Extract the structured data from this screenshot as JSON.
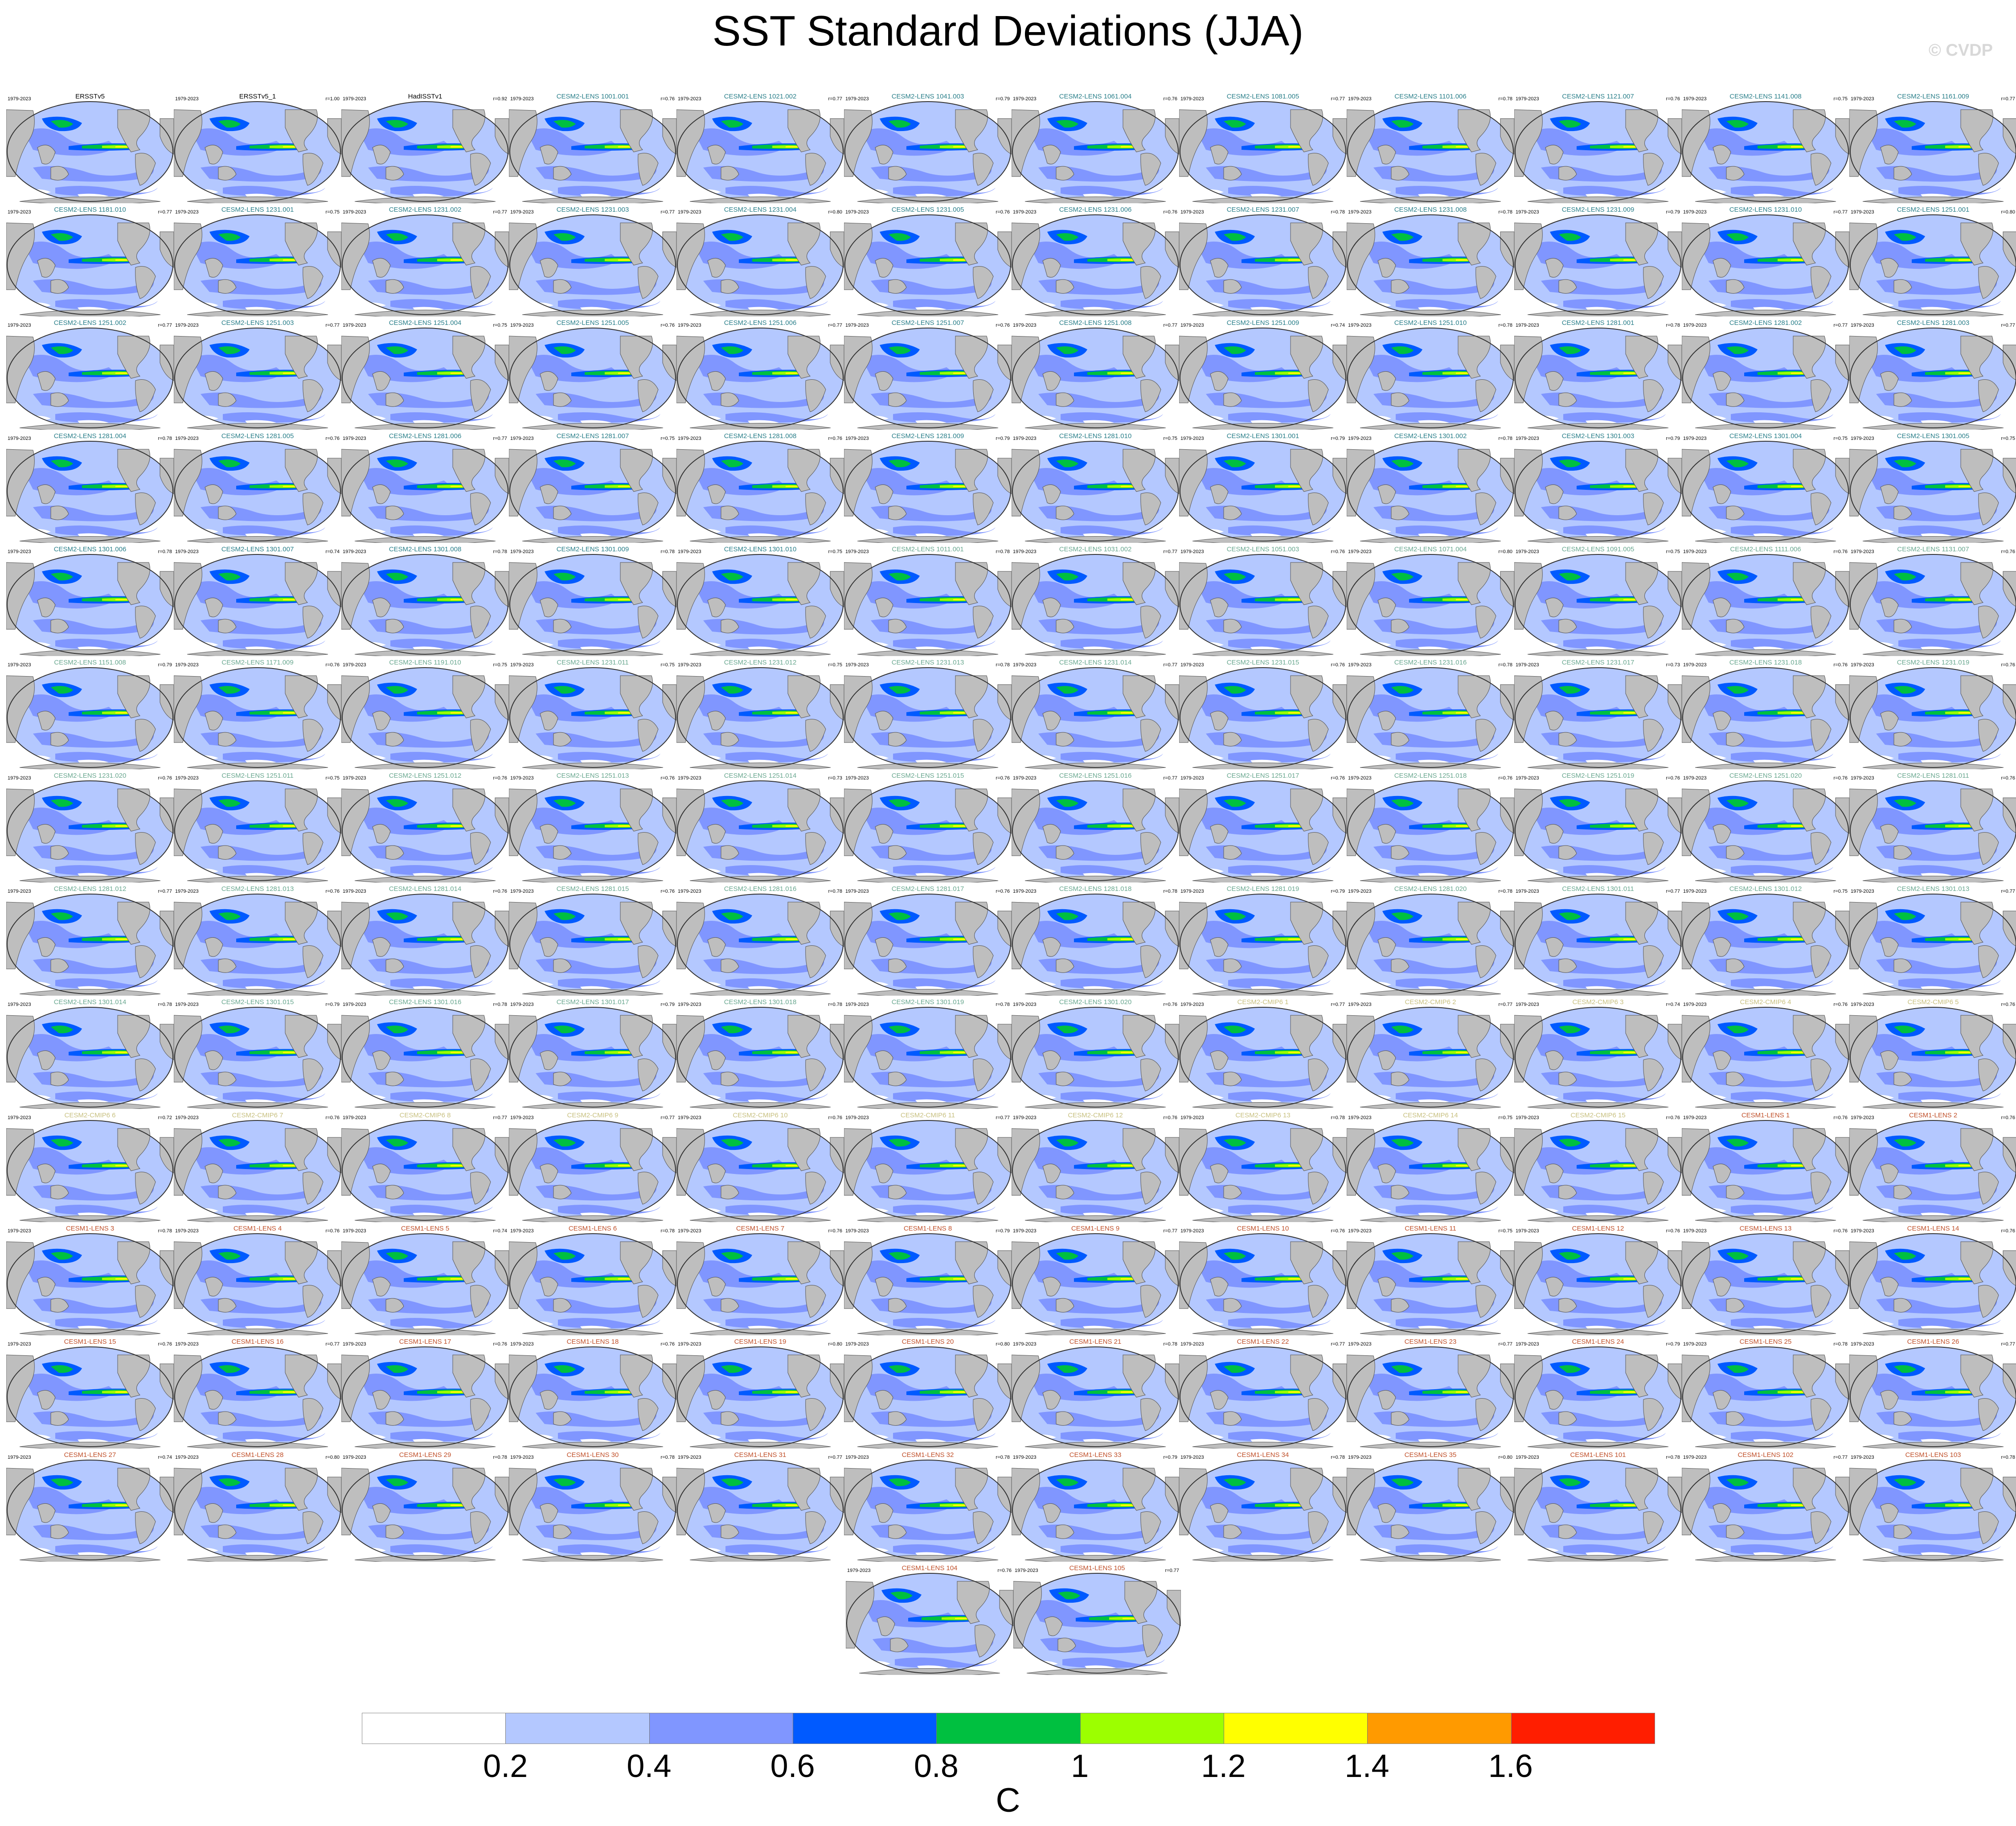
{
  "title": "SST Standard Deviations (JJA)",
  "watermark": "© CVDP",
  "years": "1979-2023",
  "colors": {
    "ocean_bg": "#b4c8ff",
    "land": "#bebebe",
    "obs_title": "#000000",
    "cesm2_title": "#2a7f8a",
    "cesm2_smbb_title": "#6aa890",
    "cesm2_cmip6_title": "#c8c080",
    "cesm1_title": "#c0502a"
  },
  "colorbar": {
    "units": "C",
    "labels": [
      "0.2",
      "0.4",
      "0.6",
      "0.8",
      "1",
      "1.2",
      "1.4",
      "1.6"
    ],
    "colors": [
      "#ffffff",
      "#b4c8ff",
      "#8096ff",
      "#005aff",
      "#00c040",
      "#9cff00",
      "#ffff00",
      "#ff9a00",
      "#ff1e00"
    ]
  },
  "panels": [
    {
      "name": "ERSSTv5",
      "r": "",
      "group": "obs"
    },
    {
      "name": "ERSSTv5_1",
      "r": "r=1.00",
      "group": "obs"
    },
    {
      "name": "HadISSTv1",
      "r": "r=0.92",
      "group": "obs"
    },
    {
      "name": "CESM2-LENS 1001.001",
      "r": "r=0.76",
      "group": "cesm2"
    },
    {
      "name": "CESM2-LENS 1021.002",
      "r": "r=0.77",
      "group": "cesm2"
    },
    {
      "name": "CESM2-LENS 1041.003",
      "r": "r=0.79",
      "group": "cesm2"
    },
    {
      "name": "CESM2-LENS 1061.004",
      "r": "r=0.76",
      "group": "cesm2"
    },
    {
      "name": "CESM2-LENS 1081.005",
      "r": "r=0.77",
      "group": "cesm2"
    },
    {
      "name": "CESM2-LENS 1101.006",
      "r": "r=0.78",
      "group": "cesm2"
    },
    {
      "name": "CESM2-LENS 1121.007",
      "r": "r=0.76",
      "group": "cesm2"
    },
    {
      "name": "CESM2-LENS 1141.008",
      "r": "r=0.75",
      "group": "cesm2"
    },
    {
      "name": "CESM2-LENS 1161.009",
      "r": "r=0.77",
      "group": "cesm2"
    },
    {
      "name": "CESM2-LENS 1181.010",
      "r": "r=0.77",
      "group": "cesm2"
    },
    {
      "name": "CESM2-LENS 1231.001",
      "r": "r=0.75",
      "group": "cesm2"
    },
    {
      "name": "CESM2-LENS 1231.002",
      "r": "r=0.77",
      "group": "cesm2"
    },
    {
      "name": "CESM2-LENS 1231.003",
      "r": "r=0.77",
      "group": "cesm2"
    },
    {
      "name": "CESM2-LENS 1231.004",
      "r": "r=0.80",
      "group": "cesm2"
    },
    {
      "name": "CESM2-LENS 1231.005",
      "r": "r=0.76",
      "group": "cesm2"
    },
    {
      "name": "CESM2-LENS 1231.006",
      "r": "r=0.76",
      "group": "cesm2"
    },
    {
      "name": "CESM2-LENS 1231.007",
      "r": "r=0.78",
      "group": "cesm2"
    },
    {
      "name": "CESM2-LENS 1231.008",
      "r": "r=0.78",
      "group": "cesm2"
    },
    {
      "name": "CESM2-LENS 1231.009",
      "r": "r=0.79",
      "group": "cesm2"
    },
    {
      "name": "CESM2-LENS 1231.010",
      "r": "r=0.77",
      "group": "cesm2"
    },
    {
      "name": "CESM2-LENS 1251.001",
      "r": "r=0.80",
      "group": "cesm2"
    },
    {
      "name": "CESM2-LENS 1251.002",
      "r": "r=0.77",
      "group": "cesm2"
    },
    {
      "name": "CESM2-LENS 1251.003",
      "r": "r=0.77",
      "group": "cesm2"
    },
    {
      "name": "CESM2-LENS 1251.004",
      "r": "r=0.75",
      "group": "cesm2"
    },
    {
      "name": "CESM2-LENS 1251.005",
      "r": "r=0.76",
      "group": "cesm2"
    },
    {
      "name": "CESM2-LENS 1251.006",
      "r": "r=0.77",
      "group": "cesm2"
    },
    {
      "name": "CESM2-LENS 1251.007",
      "r": "r=0.76",
      "group": "cesm2"
    },
    {
      "name": "CESM2-LENS 1251.008",
      "r": "r=0.77",
      "group": "cesm2"
    },
    {
      "name": "CESM2-LENS 1251.009",
      "r": "r=0.74",
      "group": "cesm2"
    },
    {
      "name": "CESM2-LENS 1251.010",
      "r": "r=0.78",
      "group": "cesm2"
    },
    {
      "name": "CESM2-LENS 1281.001",
      "r": "r=0.78",
      "group": "cesm2"
    },
    {
      "name": "CESM2-LENS 1281.002",
      "r": "r=0.77",
      "group": "cesm2"
    },
    {
      "name": "CESM2-LENS 1281.003",
      "r": "r=0.77",
      "group": "cesm2"
    },
    {
      "name": "CESM2-LENS 1281.004",
      "r": "r=0.78",
      "group": "cesm2"
    },
    {
      "name": "CESM2-LENS 1281.005",
      "r": "r=0.76",
      "group": "cesm2"
    },
    {
      "name": "CESM2-LENS 1281.006",
      "r": "r=0.77",
      "group": "cesm2"
    },
    {
      "name": "CESM2-LENS 1281.007",
      "r": "r=0.75",
      "group": "cesm2"
    },
    {
      "name": "CESM2-LENS 1281.008",
      "r": "r=0.76",
      "group": "cesm2"
    },
    {
      "name": "CESM2-LENS 1281.009",
      "r": "r=0.79",
      "group": "cesm2"
    },
    {
      "name": "CESM2-LENS 1281.010",
      "r": "r=0.75",
      "group": "cesm2"
    },
    {
      "name": "CESM2-LENS 1301.001",
      "r": "r=0.79",
      "group": "cesm2"
    },
    {
      "name": "CESM2-LENS 1301.002",
      "r": "r=0.78",
      "group": "cesm2"
    },
    {
      "name": "CESM2-LENS 1301.003",
      "r": "r=0.79",
      "group": "cesm2"
    },
    {
      "name": "CESM2-LENS 1301.004",
      "r": "r=0.75",
      "group": "cesm2"
    },
    {
      "name": "CESM2-LENS 1301.005",
      "r": "r=0.75",
      "group": "cesm2"
    },
    {
      "name": "CESM2-LENS 1301.006",
      "r": "r=0.78",
      "group": "cesm2"
    },
    {
      "name": "CESM2-LENS 1301.007",
      "r": "r=0.74",
      "group": "cesm2"
    },
    {
      "name": "CESM2-LENS 1301.008",
      "r": "r=0.78",
      "group": "cesm2"
    },
    {
      "name": "CESM2-LENS 1301.009",
      "r": "r=0.78",
      "group": "cesm2"
    },
    {
      "name": "CESM2-LENS 1301.010",
      "r": "r=0.75",
      "group": "cesm2"
    },
    {
      "name": "CESM2-LENS 1011.001",
      "r": "r=0.78",
      "group": "cesm2b"
    },
    {
      "name": "CESM2-LENS 1031.002",
      "r": "r=0.77",
      "group": "cesm2b"
    },
    {
      "name": "CESM2-LENS 1051.003",
      "r": "r=0.76",
      "group": "cesm2b"
    },
    {
      "name": "CESM2-LENS 1071.004",
      "r": "r=0.80",
      "group": "cesm2b"
    },
    {
      "name": "CESM2-LENS 1091.005",
      "r": "r=0.75",
      "group": "cesm2b"
    },
    {
      "name": "CESM2-LENS 1111.006",
      "r": "r=0.76",
      "group": "cesm2b"
    },
    {
      "name": "CESM2-LENS 1131.007",
      "r": "r=0.76",
      "group": "cesm2b"
    },
    {
      "name": "CESM2-LENS 1151.008",
      "r": "r=0.79",
      "group": "cesm2b"
    },
    {
      "name": "CESM2-LENS 1171.009",
      "r": "r=0.76",
      "group": "cesm2b"
    },
    {
      "name": "CESM2-LENS 1191.010",
      "r": "r=0.75",
      "group": "cesm2b"
    },
    {
      "name": "CESM2-LENS 1231.011",
      "r": "r=0.75",
      "group": "cesm2b"
    },
    {
      "name": "CESM2-LENS 1231.012",
      "r": "r=0.75",
      "group": "cesm2b"
    },
    {
      "name": "CESM2-LENS 1231.013",
      "r": "r=0.78",
      "group": "cesm2b"
    },
    {
      "name": "CESM2-LENS 1231.014",
      "r": "r=0.77",
      "group": "cesm2b"
    },
    {
      "name": "CESM2-LENS 1231.015",
      "r": "r=0.76",
      "group": "cesm2b"
    },
    {
      "name": "CESM2-LENS 1231.016",
      "r": "r=0.78",
      "group": "cesm2b"
    },
    {
      "name": "CESM2-LENS 1231.017",
      "r": "r=0.73",
      "group": "cesm2b"
    },
    {
      "name": "CESM2-LENS 1231.018",
      "r": "r=0.76",
      "group": "cesm2b"
    },
    {
      "name": "CESM2-LENS 1231.019",
      "r": "r=0.76",
      "group": "cesm2b"
    },
    {
      "name": "CESM2-LENS 1231.020",
      "r": "r=0.76",
      "group": "cesm2b"
    },
    {
      "name": "CESM2-LENS 1251.011",
      "r": "r=0.75",
      "group": "cesm2b"
    },
    {
      "name": "CESM2-LENS 1251.012",
      "r": "r=0.76",
      "group": "cesm2b"
    },
    {
      "name": "CESM2-LENS 1251.013",
      "r": "r=0.76",
      "group": "cesm2b"
    },
    {
      "name": "CESM2-LENS 1251.014",
      "r": "r=0.73",
      "group": "cesm2b"
    },
    {
      "name": "CESM2-LENS 1251.015",
      "r": "r=0.76",
      "group": "cesm2b"
    },
    {
      "name": "CESM2-LENS 1251.016",
      "r": "r=0.77",
      "group": "cesm2b"
    },
    {
      "name": "CESM2-LENS 1251.017",
      "r": "r=0.76",
      "group": "cesm2b"
    },
    {
      "name": "CESM2-LENS 1251.018",
      "r": "r=0.76",
      "group": "cesm2b"
    },
    {
      "name": "CESM2-LENS 1251.019",
      "r": "r=0.76",
      "group": "cesm2b"
    },
    {
      "name": "CESM2-LENS 1251.020",
      "r": "r=0.76",
      "group": "cesm2b"
    },
    {
      "name": "CESM2-LENS 1281.011",
      "r": "r=0.76",
      "group": "cesm2b"
    },
    {
      "name": "CESM2-LENS 1281.012",
      "r": "r=0.77",
      "group": "cesm2b"
    },
    {
      "name": "CESM2-LENS 1281.013",
      "r": "r=0.76",
      "group": "cesm2b"
    },
    {
      "name": "CESM2-LENS 1281.014",
      "r": "r=0.76",
      "group": "cesm2b"
    },
    {
      "name": "CESM2-LENS 1281.015",
      "r": "r=0.76",
      "group": "cesm2b"
    },
    {
      "name": "CESM2-LENS 1281.016",
      "r": "r=0.78",
      "group": "cesm2b"
    },
    {
      "name": "CESM2-LENS 1281.017",
      "r": "r=0.76",
      "group": "cesm2b"
    },
    {
      "name": "CESM2-LENS 1281.018",
      "r": "r=0.78",
      "group": "cesm2b"
    },
    {
      "name": "CESM2-LENS 1281.019",
      "r": "r=0.79",
      "group": "cesm2b"
    },
    {
      "name": "CESM2-LENS 1281.020",
      "r": "r=0.78",
      "group": "cesm2b"
    },
    {
      "name": "CESM2-LENS 1301.011",
      "r": "r=0.77",
      "group": "cesm2b"
    },
    {
      "name": "CESM2-LENS 1301.012",
      "r": "r=0.75",
      "group": "cesm2b"
    },
    {
      "name": "CESM2-LENS 1301.013",
      "r": "r=0.77",
      "group": "cesm2b"
    },
    {
      "name": "CESM2-LENS 1301.014",
      "r": "r=0.78",
      "group": "cesm2b"
    },
    {
      "name": "CESM2-LENS 1301.015",
      "r": "r=0.79",
      "group": "cesm2b"
    },
    {
      "name": "CESM2-LENS 1301.016",
      "r": "r=0.78",
      "group": "cesm2b"
    },
    {
      "name": "CESM2-LENS 1301.017",
      "r": "r=0.79",
      "group": "cesm2b"
    },
    {
      "name": "CESM2-LENS 1301.018",
      "r": "r=0.78",
      "group": "cesm2b"
    },
    {
      "name": "CESM2-LENS 1301.019",
      "r": "r=0.78",
      "group": "cesm2b"
    },
    {
      "name": "CESM2-LENS 1301.020",
      "r": "r=0.76",
      "group": "cesm2b"
    },
    {
      "name": "CESM2-CMIP6 1",
      "r": "r=0.77",
      "group": "cmip6"
    },
    {
      "name": "CESM2-CMIP6 2",
      "r": "r=0.77",
      "group": "cmip6"
    },
    {
      "name": "CESM2-CMIP6 3",
      "r": "r=0.74",
      "group": "cmip6"
    },
    {
      "name": "CESM2-CMIP6 4",
      "r": "r=0.76",
      "group": "cmip6"
    },
    {
      "name": "CESM2-CMIP6 5",
      "r": "r=0.76",
      "group": "cmip6"
    },
    {
      "name": "CESM2-CMIP6 6",
      "r": "r=0.72",
      "group": "cmip6"
    },
    {
      "name": "CESM2-CMIP6 7",
      "r": "r=0.76",
      "group": "cmip6"
    },
    {
      "name": "CESM2-CMIP6 8",
      "r": "r=0.77",
      "group": "cmip6"
    },
    {
      "name": "CESM2-CMIP6 9",
      "r": "r=0.77",
      "group": "cmip6"
    },
    {
      "name": "CESM2-CMIP6 10",
      "r": "r=0.76",
      "group": "cmip6"
    },
    {
      "name": "CESM2-CMIP6 11",
      "r": "r=0.77",
      "group": "cmip6"
    },
    {
      "name": "CESM2-CMIP6 12",
      "r": "r=0.76",
      "group": "cmip6"
    },
    {
      "name": "CESM2-CMIP6 13",
      "r": "r=0.78",
      "group": "cmip6"
    },
    {
      "name": "CESM2-CMIP6 14",
      "r": "r=0.75",
      "group": "cmip6"
    },
    {
      "name": "CESM2-CMIP6 15",
      "r": "r=0.76",
      "group": "cmip6"
    },
    {
      "name": "CESM1-LENS 1",
      "r": "r=0.76",
      "group": "cesm1"
    },
    {
      "name": "CESM1-LENS 2",
      "r": "r=0.76",
      "group": "cesm1"
    },
    {
      "name": "CESM1-LENS 3",
      "r": "r=0.78",
      "group": "cesm1"
    },
    {
      "name": "CESM1-LENS 4",
      "r": "r=0.76",
      "group": "cesm1"
    },
    {
      "name": "CESM1-LENS 5",
      "r": "r=0.74",
      "group": "cesm1"
    },
    {
      "name": "CESM1-LENS 6",
      "r": "r=0.78",
      "group": "cesm1"
    },
    {
      "name": "CESM1-LENS 7",
      "r": "r=0.76",
      "group": "cesm1"
    },
    {
      "name": "CESM1-LENS 8",
      "r": "r=0.79",
      "group": "cesm1"
    },
    {
      "name": "CESM1-LENS 9",
      "r": "r=0.77",
      "group": "cesm1"
    },
    {
      "name": "CESM1-LENS 10",
      "r": "r=0.76",
      "group": "cesm1"
    },
    {
      "name": "CESM1-LENS 11",
      "r": "r=0.75",
      "group": "cesm1"
    },
    {
      "name": "CESM1-LENS 12",
      "r": "r=0.76",
      "group": "cesm1"
    },
    {
      "name": "CESM1-LENS 13",
      "r": "r=0.76",
      "group": "cesm1"
    },
    {
      "name": "CESM1-LENS 14",
      "r": "r=0.76",
      "group": "cesm1"
    },
    {
      "name": "CESM1-LENS 15",
      "r": "r=0.76",
      "group": "cesm1"
    },
    {
      "name": "CESM1-LENS 16",
      "r": "r=0.77",
      "group": "cesm1"
    },
    {
      "name": "CESM1-LENS 17",
      "r": "r=0.76",
      "group": "cesm1"
    },
    {
      "name": "CESM1-LENS 18",
      "r": "r=0.76",
      "group": "cesm1"
    },
    {
      "name": "CESM1-LENS 19",
      "r": "r=0.80",
      "group": "cesm1"
    },
    {
      "name": "CESM1-LENS 20",
      "r": "r=0.80",
      "group": "cesm1"
    },
    {
      "name": "CESM1-LENS 21",
      "r": "r=0.78",
      "group": "cesm1"
    },
    {
      "name": "CESM1-LENS 22",
      "r": "r=0.77",
      "group": "cesm1"
    },
    {
      "name": "CESM1-LENS 23",
      "r": "r=0.77",
      "group": "cesm1"
    },
    {
      "name": "CESM1-LENS 24",
      "r": "r=0.79",
      "group": "cesm1"
    },
    {
      "name": "CESM1-LENS 25",
      "r": "r=0.78",
      "group": "cesm1"
    },
    {
      "name": "CESM1-LENS 26",
      "r": "r=0.77",
      "group": "cesm1"
    },
    {
      "name": "CESM1-LENS 27",
      "r": "r=0.74",
      "group": "cesm1"
    },
    {
      "name": "CESM1-LENS 28",
      "r": "r=0.80",
      "group": "cesm1"
    },
    {
      "name": "CESM1-LENS 29",
      "r": "r=0.78",
      "group": "cesm1"
    },
    {
      "name": "CESM1-LENS 30",
      "r": "r=0.78",
      "group": "cesm1"
    },
    {
      "name": "CESM1-LENS 31",
      "r": "r=0.77",
      "group": "cesm1"
    },
    {
      "name": "CESM1-LENS 32",
      "r": "r=0.78",
      "group": "cesm1"
    },
    {
      "name": "CESM1-LENS 33",
      "r": "r=0.79",
      "group": "cesm1"
    },
    {
      "name": "CESM1-LENS 34",
      "r": "r=0.78",
      "group": "cesm1"
    },
    {
      "name": "CESM1-LENS 35",
      "r": "r=0.80",
      "group": "cesm1"
    },
    {
      "name": "CESM1-LENS 101",
      "r": "r=0.78",
      "group": "cesm1"
    },
    {
      "name": "CESM1-LENS 102",
      "r": "r=0.77",
      "group": "cesm1"
    },
    {
      "name": "CESM1-LENS 103",
      "r": "r=0.78",
      "group": "cesm1"
    },
    {
      "name": "CESM1-LENS 104",
      "r": "r=0.76",
      "group": "cesm1"
    },
    {
      "name": "CESM1-LENS 105",
      "r": "r=0.77",
      "group": "cesm1"
    }
  ]
}
